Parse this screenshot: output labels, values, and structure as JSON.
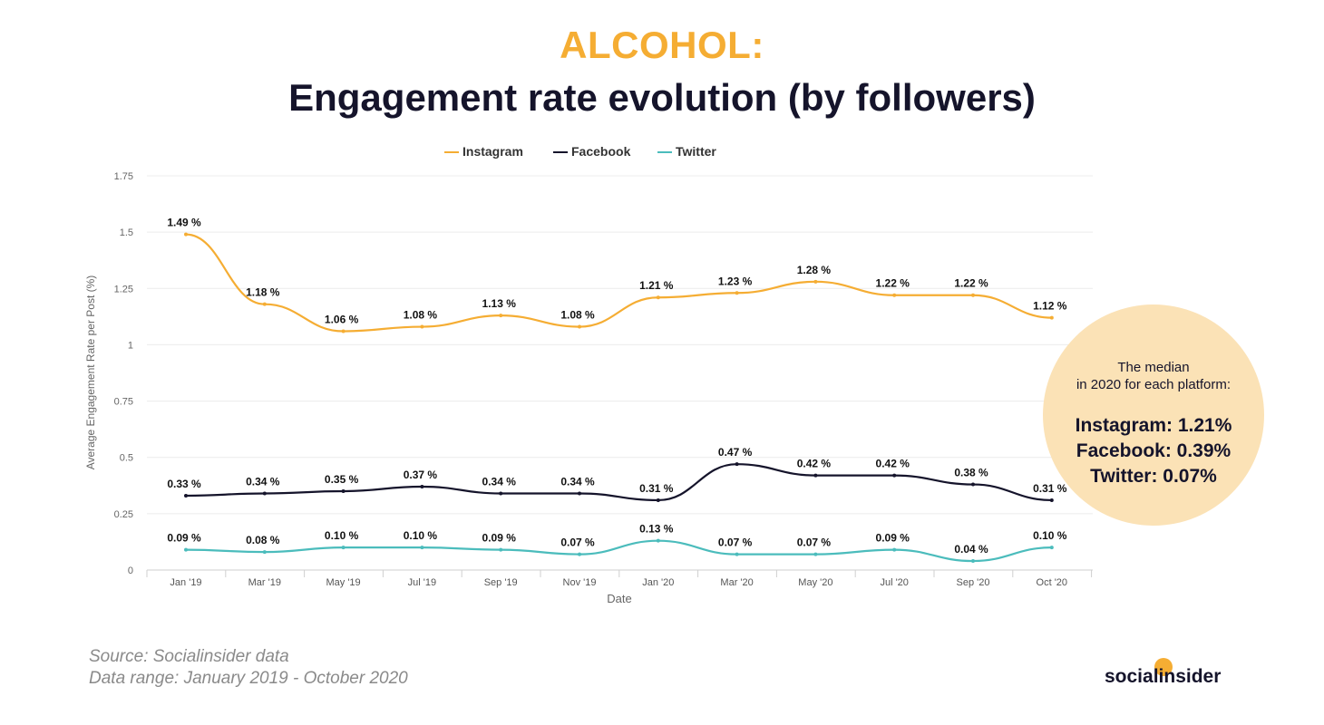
{
  "header": {
    "category": "ALCOHOL:",
    "title": "Engagement rate evolution (by followers)"
  },
  "colors": {
    "accent": "#f5ad33",
    "dark": "#15142b",
    "instagram": "#f5ad33",
    "facebook": "#15142b",
    "twitter": "#4bbcbc",
    "median_circle": "#fbe2b6"
  },
  "chart_data": {
    "type": "line",
    "xlabel": "Date",
    "ylabel": "Average Engagement Rate per Post (%)",
    "ylim": [
      0,
      1.75
    ],
    "yticks": [
      "0",
      "0.25",
      "0.5",
      "0.75",
      "1",
      "1.25",
      "1.5",
      "1.75"
    ],
    "ytick_values": [
      0,
      0.25,
      0.5,
      0.75,
      1,
      1.25,
      1.5,
      1.75
    ],
    "categories": [
      "Jan '19",
      "Mar '19",
      "May '19",
      "Jul '19",
      "Sep '19",
      "Nov '19",
      "Jan '20",
      "Mar '20",
      "May '20",
      "Jul '20",
      "Sep '20",
      "Oct '20"
    ],
    "legend_position": "top-center",
    "grid": true,
    "series": [
      {
        "name": "Instagram",
        "color": "#f5ad33",
        "values": [
          1.49,
          1.18,
          1.06,
          1.08,
          1.13,
          1.08,
          1.21,
          1.23,
          1.28,
          1.22,
          1.22,
          1.12
        ],
        "labels": [
          "1.49 %",
          "1.18 %",
          "1.06 %",
          "1.08 %",
          "1.13 %",
          "1.08 %",
          "1.21 %",
          "1.23 %",
          "1.28 %",
          "1.22 %",
          "1.22 %",
          "1.12 %"
        ]
      },
      {
        "name": "Facebook",
        "color": "#15142b",
        "values": [
          0.33,
          0.34,
          0.35,
          0.37,
          0.34,
          0.34,
          0.31,
          0.47,
          0.42,
          0.42,
          0.38,
          0.31
        ],
        "labels": [
          "0.33 %",
          "0.34 %",
          "0.35 %",
          "0.37 %",
          "0.34 %",
          "0.34 %",
          "0.31 %",
          "0.47 %",
          "0.42 %",
          "0.42 %",
          "0.38 %",
          "0.31 %"
        ]
      },
      {
        "name": "Twitter",
        "color": "#4bbcbc",
        "values": [
          0.09,
          0.08,
          0.1,
          0.1,
          0.09,
          0.07,
          0.13,
          0.07,
          0.07,
          0.09,
          0.04,
          0.1
        ],
        "labels": [
          "0.09 %",
          "0.08 %",
          "0.10 %",
          "0.10 %",
          "0.09 %",
          "0.07 %",
          "0.13 %",
          "0.07 %",
          "0.07 %",
          "0.09 %",
          "0.04 %",
          "0.10 %"
        ]
      }
    ]
  },
  "median": {
    "line1": "The median",
    "line2": "in 2020 for each platform:",
    "instagram": "Instagram: 1.21%",
    "facebook": "Facebook: 0.39%",
    "twitter": "Twitter: 0.07%"
  },
  "footer": {
    "source": "Source: Socialinsider data",
    "range": "Data range: January 2019 - October 2020",
    "logo": "socialinsider"
  }
}
